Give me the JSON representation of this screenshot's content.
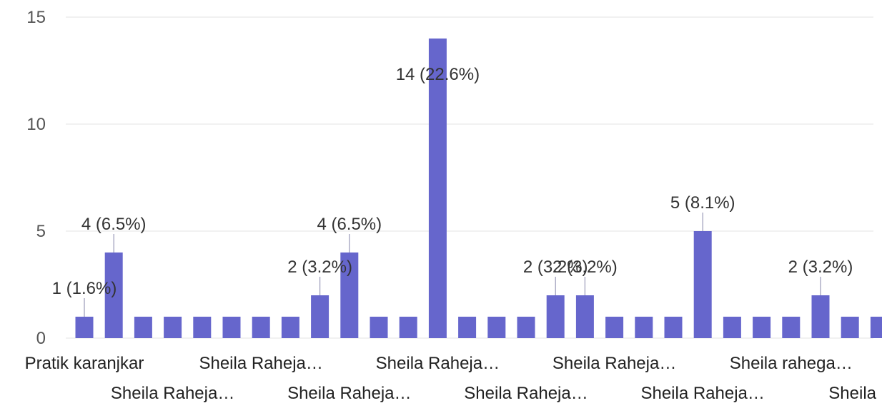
{
  "chart_data": {
    "type": "bar",
    "color": "#6666cc",
    "ylim": [
      0,
      15
    ],
    "yticks": [
      "0",
      "5",
      "10",
      "15"
    ],
    "grid": true,
    "values": [
      1,
      4,
      1,
      1,
      1,
      1,
      1,
      1,
      2,
      4,
      1,
      1,
      14,
      1,
      1,
      1,
      2,
      2,
      1,
      1,
      1,
      5,
      1,
      1,
      1,
      2,
      1,
      1
    ],
    "data_labels": [
      {
        "bar": 0,
        "text": "1 (1.6%)"
      },
      {
        "bar": 1,
        "text": "4 (6.5%)"
      },
      {
        "bar": 8,
        "text": "2 (3.2%)"
      },
      {
        "bar": 9,
        "text": "4 (6.5%)"
      },
      {
        "bar": 12,
        "text": "14 (22.6%)"
      },
      {
        "bar": 16,
        "text": "2 (3.2%)"
      },
      {
        "bar": 17,
        "text": "2 (3.2%)"
      },
      {
        "bar": 21,
        "text": "5 (8.1%)"
      },
      {
        "bar": 25,
        "text": "2 (3.2%)"
      }
    ],
    "x_labels_row1": [
      {
        "bar": 0,
        "text": "Pratik karanjkar"
      },
      {
        "bar": 6,
        "text": "Sheila Raheja…"
      },
      {
        "bar": 12,
        "text": "Sheila Raheja…"
      },
      {
        "bar": 18,
        "text": "Sheila Raheja…"
      },
      {
        "bar": 24,
        "text": "Sheila rahega…"
      }
    ],
    "x_labels_row2": [
      {
        "bar": 3,
        "text": "Sheila Raheja…"
      },
      {
        "bar": 9,
        "text": "Sheila Raheja…"
      },
      {
        "bar": 15,
        "text": "Sheila Raheja…"
      },
      {
        "bar": 21,
        "text": "Sheila Raheja…"
      },
      {
        "bar": 27,
        "text": "Sheila"
      }
    ]
  }
}
